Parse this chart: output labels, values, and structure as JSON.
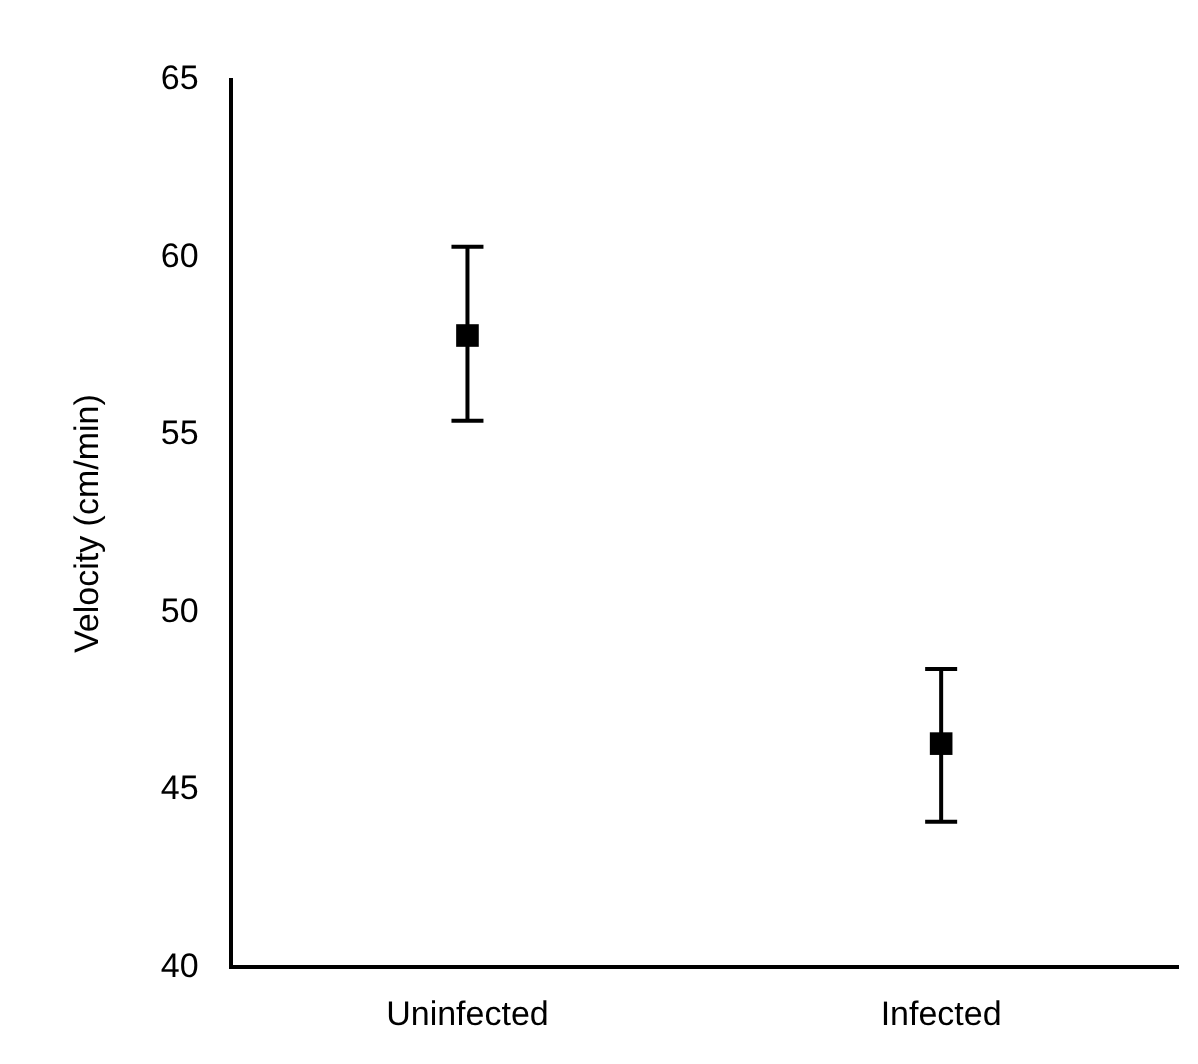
{
  "chart_data": {
    "type": "scatter",
    "ylabel": "Velocity (cm/min)",
    "categories": [
      "Uninfected",
      "Infected"
    ],
    "values": [
      57.8,
      46.3
    ],
    "errors": [
      [
        55.4,
        60.3
      ],
      [
        44.1,
        48.4
      ]
    ],
    "color": "#000000",
    "marker": "square",
    "ylim": [
      40,
      65
    ],
    "yticks": [
      40,
      45,
      50,
      55,
      60,
      65
    ]
  }
}
